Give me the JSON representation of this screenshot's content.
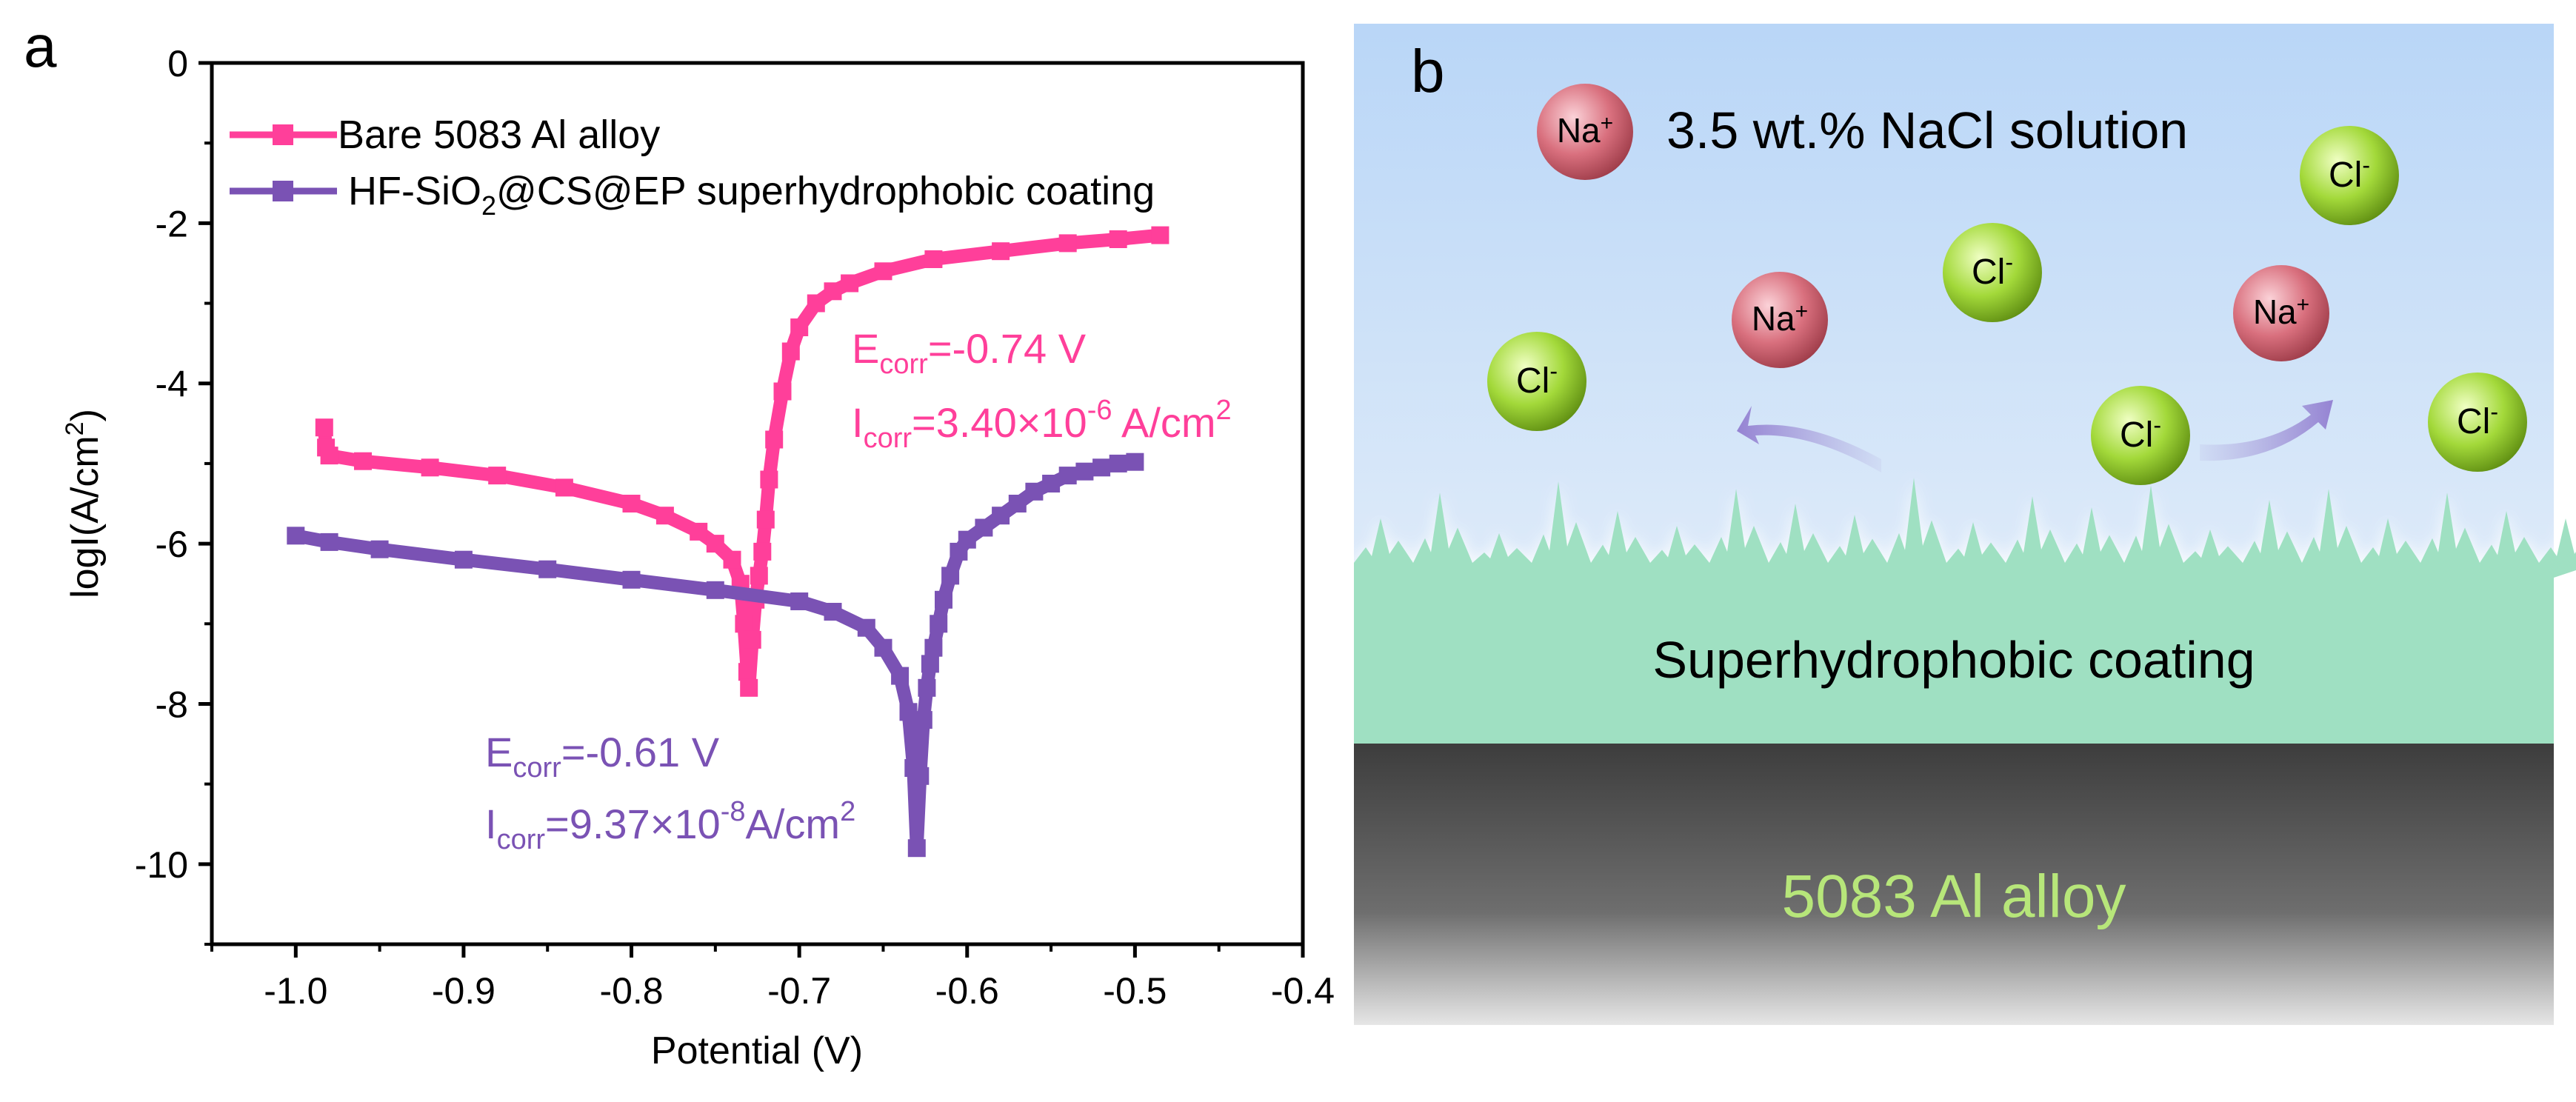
{
  "panel_a": {
    "label": "a",
    "chart_data": {
      "type": "line",
      "xlabel": "Potential (V)",
      "ylabel": "logI(A/cm²)",
      "ylabel_main": "logI(A/cm",
      "ylabel_sup": "2",
      "ylabel_end": ")",
      "xlim": [
        -1.05,
        -0.4
      ],
      "ylim": [
        -11,
        0
      ],
      "xticks": [
        -1.0,
        -0.9,
        -0.8,
        -0.7,
        -0.6,
        -0.5,
        -0.4
      ],
      "xtick_labels": [
        "-1.0",
        "-0.9",
        "-0.8",
        "-0.7",
        "-0.6",
        "-0.5",
        "-0.4"
      ],
      "yticks": [
        0,
        -2,
        -4,
        -6,
        -8,
        -10
      ],
      "ytick_labels": [
        "0",
        "-2",
        "-4",
        "-6",
        "-8",
        "-10"
      ],
      "legend_position": "top-left",
      "series": [
        {
          "name": "Bare 5083 Al alloy",
          "color": "#ff3f9a",
          "x": [
            -0.983,
            -0.982,
            -0.98,
            -0.96,
            -0.92,
            -0.88,
            -0.84,
            -0.8,
            -0.78,
            -0.76,
            -0.75,
            -0.74,
            -0.735,
            -0.733,
            -0.731,
            -0.73,
            -0.728,
            -0.726,
            -0.724,
            -0.722,
            -0.72,
            -0.718,
            -0.715,
            -0.71,
            -0.705,
            -0.7,
            -0.69,
            -0.68,
            -0.67,
            -0.65,
            -0.62,
            -0.58,
            -0.54,
            -0.51,
            -0.485
          ],
          "y": [
            -4.55,
            -4.8,
            -4.9,
            -4.97,
            -5.05,
            -5.15,
            -5.3,
            -5.5,
            -5.65,
            -5.85,
            -6.0,
            -6.2,
            -6.5,
            -7.0,
            -7.6,
            -7.8,
            -7.2,
            -6.7,
            -6.4,
            -6.1,
            -5.7,
            -5.2,
            -4.7,
            -4.1,
            -3.6,
            -3.3,
            -3.0,
            -2.85,
            -2.75,
            -2.6,
            -2.45,
            -2.35,
            -2.25,
            -2.2,
            -2.15
          ]
        },
        {
          "name": "HF-SiO2@CS@EP superhydrophobic coating",
          "name_parts": [
            "HF-SiO",
            "2",
            "@CS@EP superhydrophobic coating"
          ],
          "color": "#7a52b4",
          "x": [
            -1.0,
            -0.98,
            -0.95,
            -0.9,
            -0.85,
            -0.8,
            -0.75,
            -0.7,
            -0.68,
            -0.66,
            -0.65,
            -0.64,
            -0.635,
            -0.632,
            -0.63,
            -0.628,
            -0.626,
            -0.624,
            -0.622,
            -0.62,
            -0.617,
            -0.614,
            -0.61,
            -0.605,
            -0.6,
            -0.59,
            -0.58,
            -0.57,
            -0.56,
            -0.55,
            -0.54,
            -0.53,
            -0.52,
            -0.51,
            -0.5
          ],
          "y": [
            -5.9,
            -5.98,
            -6.07,
            -6.2,
            -6.32,
            -6.45,
            -6.58,
            -6.72,
            -6.85,
            -7.05,
            -7.3,
            -7.65,
            -8.1,
            -8.8,
            -9.8,
            -8.9,
            -8.2,
            -7.8,
            -7.5,
            -7.3,
            -7.0,
            -6.7,
            -6.4,
            -6.1,
            -5.95,
            -5.8,
            -5.65,
            -5.5,
            -5.35,
            -5.25,
            -5.15,
            -5.1,
            -5.05,
            -5.0,
            -4.98
          ]
        }
      ],
      "annotations": [
        {
          "lines": [
            {
              "main": "E",
              "sub": "corr",
              "rest": "=-0.74 V"
            },
            {
              "main": "I",
              "sub": "corr",
              "rest": "=3.40×10",
              "sup": "-6",
              "tail": " A/cm",
              "sup2": "2"
            }
          ],
          "color": "#ff3f9a"
        },
        {
          "lines": [
            {
              "main": "E",
              "sub": "corr",
              "rest": "=-0.61 V"
            },
            {
              "main": "I",
              "sub": "corr",
              "rest": "=9.37×10",
              "sup": "-8",
              "tail": "A/cm",
              "sup2": "2"
            }
          ],
          "color": "#7a52b4"
        }
      ]
    }
  },
  "panel_b": {
    "label": "b",
    "solution_label": "3.5 wt.% NaCl solution",
    "coating_label": "Superhydrophobic coating",
    "substrate_label": "5083 Al alloy",
    "ion_na": "Na",
    "ion_na_charge": "+",
    "ion_cl": "Cl",
    "ion_cl_charge": "-",
    "colors": {
      "na": "#d9707e",
      "cl": "#a3d93a",
      "coating": "#9fe0c2",
      "substrate_text": "#b7e67a"
    }
  }
}
